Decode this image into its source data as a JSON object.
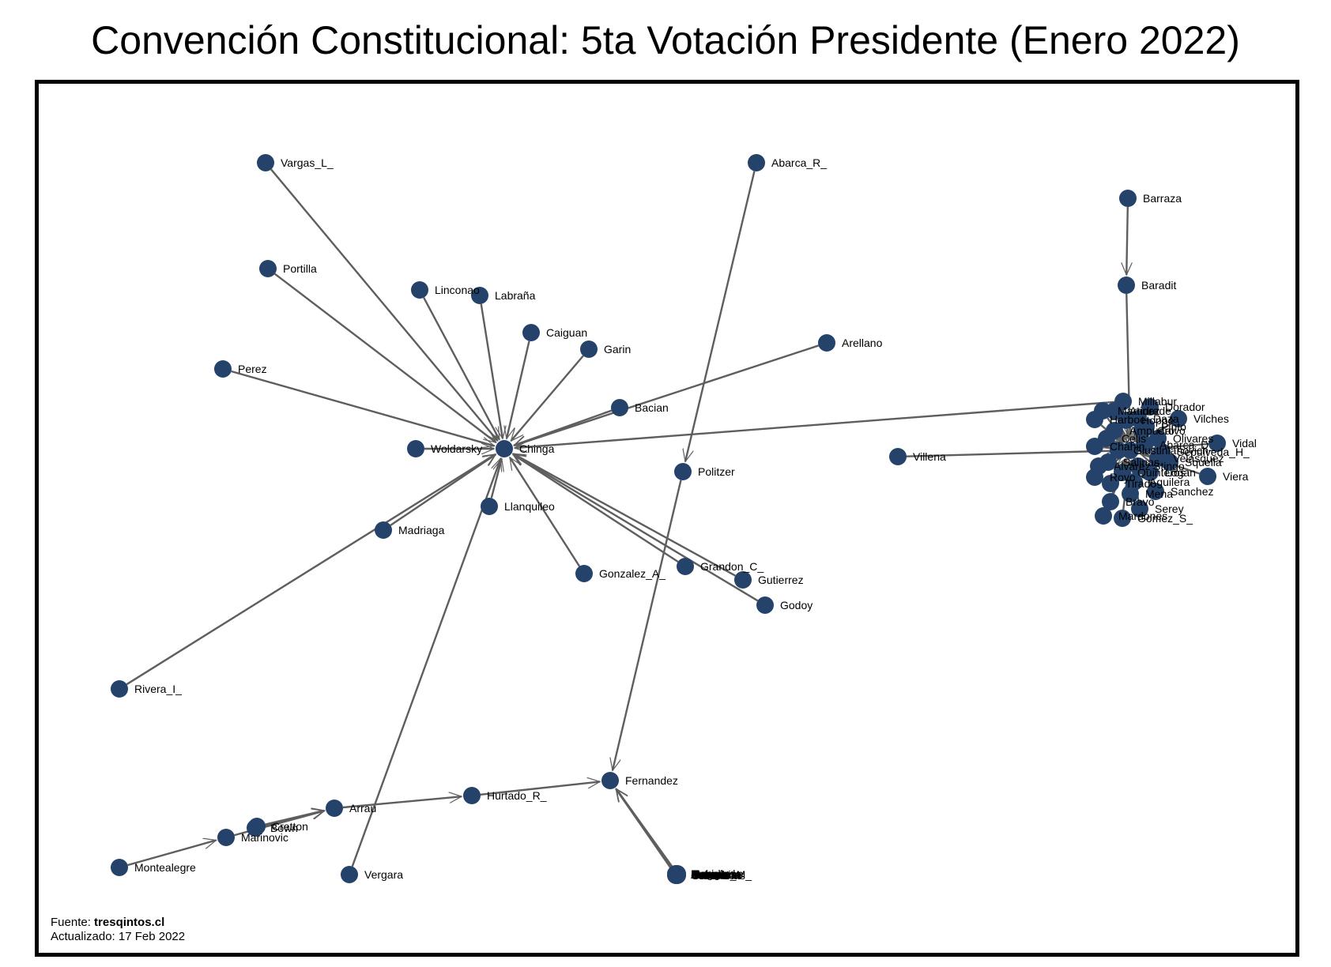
{
  "title": "Convención Constitucional: 5ta Votación Presidente (Enero 2022)",
  "caption": {
    "source_label": "Fuente: ",
    "source_name": "tresqintos.cl",
    "updated": "Actualizado: 17 Feb 2022"
  },
  "colors": {
    "node": "#24426a",
    "edge": "#5e5e5e",
    "frame": "#000000"
  },
  "nodes": [
    {
      "id": "Vargas_L_",
      "label": "Vargas_L_"
    },
    {
      "id": "Portilla",
      "label": "Portilla"
    },
    {
      "id": "Linconao",
      "label": "Linconao"
    },
    {
      "id": "Labraña",
      "label": "Labraña"
    },
    {
      "id": "Caiguan",
      "label": "Caiguan"
    },
    {
      "id": "Garin",
      "label": "Garin"
    },
    {
      "id": "Perez",
      "label": "Perez"
    },
    {
      "id": "Bacian",
      "label": "Bacian"
    },
    {
      "id": "Woldarsky",
      "label": "Woldarsky"
    },
    {
      "id": "Chinga",
      "label": "Chinga"
    },
    {
      "id": "Llanquileo",
      "label": "Llanquileo"
    },
    {
      "id": "Madriaga",
      "label": "Madriaga"
    },
    {
      "id": "Gonzalez_A_",
      "label": "Gonzalez_A_"
    },
    {
      "id": "Grandon_C_",
      "label": "Grandon_C_"
    },
    {
      "id": "Gutierrez",
      "label": "Gutierrez"
    },
    {
      "id": "Godoy",
      "label": "Godoy"
    },
    {
      "id": "Rivera_I_",
      "label": "Rivera_I_"
    },
    {
      "id": "Abarca_R_",
      "label": "Abarca_R_"
    },
    {
      "id": "Politzer",
      "label": "Politzer"
    },
    {
      "id": "Arellano",
      "label": "Arellano"
    },
    {
      "id": "Millabur",
      "label": "Millabur"
    },
    {
      "id": "Barraza",
      "label": "Barraza"
    },
    {
      "id": "Baradit",
      "label": "Baradit"
    },
    {
      "id": "Villena",
      "label": "Villena"
    },
    {
      "id": "Vidal",
      "label": "Vidal"
    },
    {
      "id": "Viera",
      "label": "Viera"
    },
    {
      "id": "Vilches",
      "label": "Vilches"
    },
    {
      "id": "Sepulveda_H_",
      "label": "Sepulveda_H_"
    },
    {
      "id": "Sanchez",
      "label": "Sanchez"
    },
    {
      "id": "Serey",
      "label": "Serey"
    },
    {
      "id": "Gomez_S_",
      "label": "Gomez_S_"
    },
    {
      "id": "Mardones",
      "label": "Mardones"
    },
    {
      "id": "Fernandez",
      "label": "Fernandez"
    },
    {
      "id": "Hurtado_R_",
      "label": "Hurtado_R_"
    },
    {
      "id": "Arrau",
      "label": "Arrau"
    },
    {
      "id": "Marinovic",
      "label": "Marinovic"
    },
    {
      "id": "Montealegre",
      "label": "Montealegre"
    },
    {
      "id": "Vergara",
      "label": "Vergara"
    },
    {
      "id": "Bown",
      "label": "Bown"
    },
    {
      "id": "Cretton",
      "label": "Cretton"
    },
    {
      "id": "Hurtado_M_",
      "label": "Hurtado_M_"
    },
    {
      "id": "Navarrete",
      "label": "Navarrete"
    },
    {
      "id": "Neumann",
      "label": "Neumann"
    },
    {
      "id": "Ossandon",
      "label": "Ossandon"
    },
    {
      "id": "Rebolledo",
      "label": "Rebolledo"
    },
    {
      "id": "Zuniga",
      "label": "Zuniga"
    },
    {
      "id": "Cantuarias",
      "label": "Cantuarias"
    },
    {
      "id": "Moreno",
      "label": "Moreno"
    },
    {
      "id": "Jofre",
      "label": "Jofre"
    },
    {
      "id": "Castro",
      "label": "Castro"
    },
    {
      "id": "Arancibia",
      "label": "Arancibia"
    },
    {
      "id": "Labra",
      "label": "Labra"
    },
    {
      "id": "Jurgensen",
      "label": "Jurgensen"
    },
    {
      "id": "Harboe",
      "label": "Harboe"
    },
    {
      "id": "Andrade",
      "label": "Andrade"
    },
    {
      "id": "Daza",
      "label": "Daza"
    },
    {
      "id": "Pinto",
      "label": "Pinto"
    },
    {
      "id": "Celis",
      "label": "Celis"
    },
    {
      "id": "Chahin",
      "label": "Chahin"
    },
    {
      "id": "Loncon",
      "label": "Loncon"
    },
    {
      "id": "Quinteros",
      "label": "Quinteros"
    },
    {
      "id": "Tirado",
      "label": "Tirado"
    },
    {
      "id": "Stingo",
      "label": "Stingo"
    },
    {
      "id": "Logan",
      "label": "Logan"
    },
    {
      "id": "Mena",
      "label": "Mena"
    },
    {
      "id": "Velasquez",
      "label": "Velasquez"
    },
    {
      "id": "Squella",
      "label": "Squella"
    },
    {
      "id": "Salinas",
      "label": "Salinas"
    },
    {
      "id": "Royo",
      "label": "Royo"
    },
    {
      "id": "Ampuero",
      "label": "Ampuero"
    },
    {
      "id": "Calvo",
      "label": "Calvo"
    },
    {
      "id": "Olivares",
      "label": "Olivares"
    },
    {
      "id": "Martinez",
      "label": "Martinez"
    },
    {
      "id": "Dorador",
      "label": "Dorador"
    },
    {
      "id": "Hoppe",
      "label": "Hoppe"
    },
    {
      "id": "Aguilera",
      "label": "Aguilera"
    },
    {
      "id": "Alvarez",
      "label": "Alvarez"
    },
    {
      "id": "Giustinianovich",
      "label": "Giustinianovich"
    },
    {
      "id": "Abarca_D_",
      "label": "Abarca_D_"
    },
    {
      "id": "Bravo",
      "label": "Bravo"
    }
  ],
  "edges": [
    {
      "from": "Vargas_L_",
      "to": "Chinga"
    },
    {
      "from": "Portilla",
      "to": "Chinga"
    },
    {
      "from": "Linconao",
      "to": "Chinga"
    },
    {
      "from": "Labraña",
      "to": "Chinga"
    },
    {
      "from": "Caiguan",
      "to": "Chinga"
    },
    {
      "from": "Garin",
      "to": "Chinga"
    },
    {
      "from": "Perez",
      "to": "Chinga"
    },
    {
      "from": "Bacian",
      "to": "Chinga"
    },
    {
      "from": "Woldarsky",
      "to": "Chinga"
    },
    {
      "from": "Llanquileo",
      "to": "Chinga"
    },
    {
      "from": "Madriaga",
      "to": "Chinga"
    },
    {
      "from": "Gonzalez_A_",
      "to": "Chinga"
    },
    {
      "from": "Grandon_C_",
      "to": "Chinga"
    },
    {
      "from": "Gutierrez",
      "to": "Chinga"
    },
    {
      "from": "Godoy",
      "to": "Chinga"
    },
    {
      "from": "Rivera_I_",
      "to": "Chinga"
    },
    {
      "from": "Arellano",
      "to": "Chinga"
    },
    {
      "from": "Millabur",
      "to": "Chinga"
    },
    {
      "from": "Vergara",
      "to": "Chinga"
    },
    {
      "from": "Abarca_R_",
      "to": "Politzer"
    },
    {
      "from": "Politzer",
      "to": "Fernandez"
    },
    {
      "from": "Hurtado_R_",
      "to": "Fernandez"
    },
    {
      "from": "Arrau",
      "to": "Hurtado_R_"
    },
    {
      "from": "Bown",
      "to": "Arrau"
    },
    {
      "from": "Cretton",
      "to": "Arrau"
    },
    {
      "from": "Marinovic",
      "to": "Arrau"
    },
    {
      "from": "Montealegre",
      "to": "Marinovic"
    },
    {
      "from": "Hurtado_M_",
      "to": "Fernandez"
    },
    {
      "from": "Navarrete",
      "to": "Fernandez"
    },
    {
      "from": "Neumann",
      "to": "Fernandez"
    },
    {
      "from": "Ossandon",
      "to": "Fernandez"
    },
    {
      "from": "Rebolledo",
      "to": "Fernandez"
    },
    {
      "from": "Zuniga",
      "to": "Fernandez"
    },
    {
      "from": "Cantuarias",
      "to": "Fernandez"
    },
    {
      "from": "Moreno",
      "to": "Fernandez"
    },
    {
      "from": "Jofre",
      "to": "Fernandez"
    },
    {
      "from": "Castro",
      "to": "Fernandez"
    },
    {
      "from": "Arancibia",
      "to": "Fernandez"
    },
    {
      "from": "Labra",
      "to": "Fernandez"
    },
    {
      "from": "Jurgensen",
      "to": "Fernandez"
    },
    {
      "from": "Barraza",
      "to": "Baradit"
    },
    {
      "from": "Baradit",
      "to": "Loncon"
    },
    {
      "from": "Villena",
      "to": "Loncon"
    },
    {
      "from": "Vidal",
      "to": "Loncon"
    },
    {
      "from": "Viera",
      "to": "Loncon"
    },
    {
      "from": "Vilches",
      "to": "Loncon"
    },
    {
      "from": "Sepulveda_H_",
      "to": "Loncon"
    },
    {
      "from": "Sanchez",
      "to": "Loncon"
    },
    {
      "from": "Serey",
      "to": "Loncon"
    },
    {
      "from": "Gomez_S_",
      "to": "Loncon"
    },
    {
      "from": "Mardones",
      "to": "Loncon"
    },
    {
      "from": "Harboe",
      "to": "Loncon"
    },
    {
      "from": "Andrade",
      "to": "Loncon"
    },
    {
      "from": "Daza",
      "to": "Loncon"
    },
    {
      "from": "Pinto",
      "to": "Loncon"
    },
    {
      "from": "Celis",
      "to": "Loncon"
    },
    {
      "from": "Chahin",
      "to": "Loncon"
    },
    {
      "from": "Quinteros",
      "to": "Loncon"
    },
    {
      "from": "Tirado",
      "to": "Loncon"
    },
    {
      "from": "Stingo",
      "to": "Loncon"
    },
    {
      "from": "Logan",
      "to": "Loncon"
    },
    {
      "from": "Mena",
      "to": "Loncon"
    },
    {
      "from": "Velasquez",
      "to": "Loncon"
    },
    {
      "from": "Squella",
      "to": "Loncon"
    },
    {
      "from": "Salinas",
      "to": "Loncon"
    },
    {
      "from": "Royo",
      "to": "Loncon"
    },
    {
      "from": "Ampuero",
      "to": "Loncon"
    },
    {
      "from": "Calvo",
      "to": "Loncon"
    },
    {
      "from": "Olivares",
      "to": "Loncon"
    },
    {
      "from": "Martinez",
      "to": "Loncon"
    },
    {
      "from": "Dorador",
      "to": "Loncon"
    },
    {
      "from": "Hoppe",
      "to": "Loncon"
    },
    {
      "from": "Aguilera",
      "to": "Loncon"
    },
    {
      "from": "Alvarez",
      "to": "Loncon"
    },
    {
      "from": "Giustinianovich",
      "to": "Loncon"
    },
    {
      "from": "Abarca_D_",
      "to": "Loncon"
    },
    {
      "from": "Bravo",
      "to": "Loncon"
    }
  ]
}
